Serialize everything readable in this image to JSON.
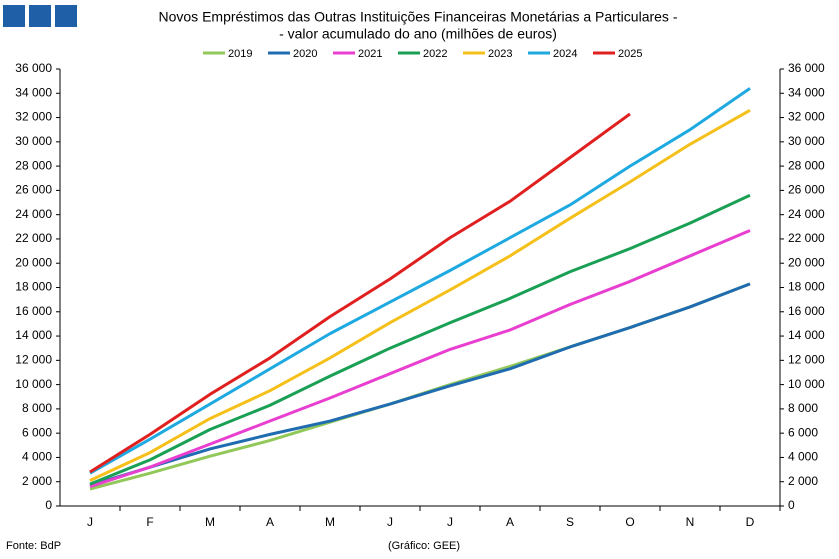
{
  "chart_data": {
    "type": "line",
    "title": [
      "Novos Empréstimos das Outras Instituições Financeiras Monetárias a Particulares -",
      "- valor acumulado do ano (milhões de euros)"
    ],
    "categories": [
      "J",
      "F",
      "M",
      "A",
      "M",
      "J",
      "J",
      "A",
      "S",
      "O",
      "N",
      "D"
    ],
    "series": [
      {
        "name": "2019",
        "color": "#92c85a",
        "values": [
          1400,
          2700,
          4100,
          5400,
          6900,
          8400,
          10000,
          11500,
          13100,
          14700,
          16400,
          18300
        ]
      },
      {
        "name": "2020",
        "color": "#1f6cb0",
        "values": [
          1700,
          3200,
          4700,
          5900,
          7000,
          8400,
          9900,
          11300,
          13100,
          14700,
          16400,
          18300
        ]
      },
      {
        "name": "2021",
        "color": "#e83fd0",
        "values": [
          1600,
          3200,
          5100,
          7000,
          8900,
          10900,
          12900,
          14500,
          16600,
          18500,
          20600,
          22700
        ]
      },
      {
        "name": "2022",
        "color": "#1aa055",
        "values": [
          1800,
          3800,
          6300,
          8300,
          10700,
          13000,
          15100,
          17100,
          19300,
          21200,
          23300,
          25600
        ]
      },
      {
        "name": "2023",
        "color": "#f5c01a",
        "values": [
          2100,
          4400,
          7200,
          9500,
          12200,
          15100,
          17800,
          20600,
          23700,
          26700,
          29800,
          32600
        ]
      },
      {
        "name": "2024",
        "color": "#1ea9e0",
        "values": [
          2700,
          5500,
          8400,
          11300,
          14200,
          16800,
          19400,
          22100,
          24800,
          28000,
          31000,
          34400
        ]
      },
      {
        "name": "2025",
        "color": "#e01f1f",
        "values": [
          2800,
          5900,
          9200,
          12200,
          15600,
          18700,
          22100,
          25100,
          28700,
          32300,
          null,
          null
        ]
      }
    ],
    "ylim": [
      0,
      36000
    ],
    "yticks": [
      0,
      {
        "value": 2000,
        "label": "2 000"
      },
      {
        "value": 4000,
        "label": "4 000"
      },
      {
        "value": 6000,
        "label": "6 000"
      },
      {
        "value": 8000,
        "label": "8 000"
      },
      {
        "value": 10000,
        "label": "10 000"
      },
      {
        "value": 12000,
        "label": "12 000"
      },
      {
        "value": 14000,
        "label": "14 000"
      },
      {
        "value": 16000,
        "label": "16 000"
      },
      {
        "value": 18000,
        "label": "18 000"
      },
      {
        "value": 20000,
        "label": "20 000"
      },
      {
        "value": 22000,
        "label": "22 000"
      },
      {
        "value": 24000,
        "label": "24 000"
      },
      {
        "value": 26000,
        "label": "26 000"
      },
      {
        "value": 28000,
        "label": "28 000"
      },
      {
        "value": 30000,
        "label": "30 000"
      },
      {
        "value": 32000,
        "label": "32 000"
      },
      {
        "value": 34000,
        "label": "34 000"
      },
      {
        "value": 36000,
        "label": "36 000"
      }
    ],
    "y_axis_both_sides": true,
    "legend": "top",
    "source": "Fonte: BdP",
    "credit": "(Gráfico: GEE)"
  }
}
